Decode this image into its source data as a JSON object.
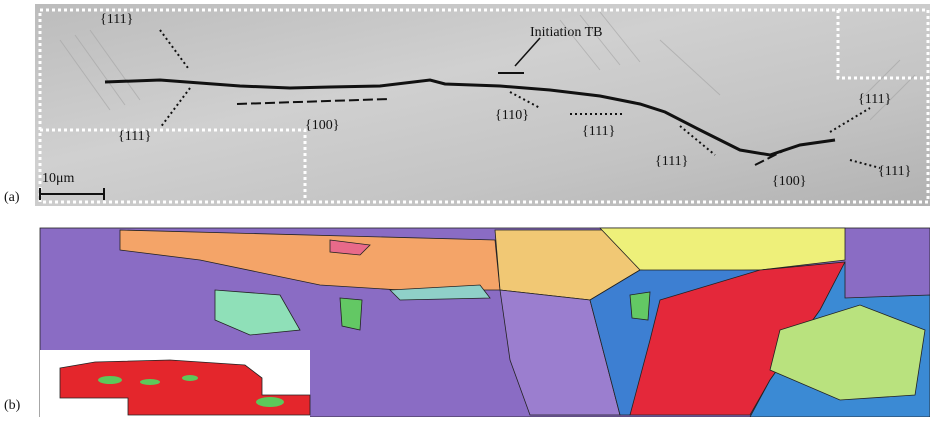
{
  "panel_a": {
    "label": "(a)",
    "scale_bar": "10μm",
    "annotations": [
      "{111}",
      "{111}",
      "{100}",
      "Initiation TB",
      "{110}",
      "{111}",
      "{111}",
      "{100}",
      "{111}",
      "{111}"
    ]
  },
  "panel_b": {
    "label": "(b)"
  }
}
